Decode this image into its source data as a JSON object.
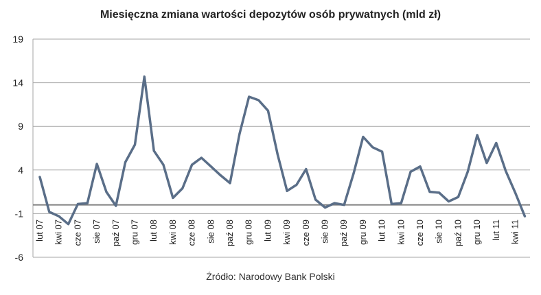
{
  "chart_data": {
    "type": "line",
    "title": "Miesięczna zmiana wartości depozytów osób prywatnych (mld zł)",
    "source": "Źródło: Narodowy Bank Polski",
    "xlabel": "",
    "ylabel": "",
    "ylim": [
      -6,
      19
    ],
    "yticks": [
      19,
      14,
      9,
      4,
      -1,
      -6
    ],
    "zero_line": 0,
    "grid": true,
    "legend": "none",
    "line_color": "#5a6e88",
    "grid_color": "#a6a6a6",
    "zero_line_color": "#808080",
    "x_tick_labels": [
      "lut 07",
      "kwi 07",
      "cze 07",
      "sie 07",
      "paź 07",
      "gru 07",
      "lut 08",
      "kwi 08",
      "cze 08",
      "sie 08",
      "paź 08",
      "gru 08",
      "lut 09",
      "kwi 09",
      "cze 09",
      "sie 09",
      "paź 09",
      "gru 09",
      "lut 10",
      "kwi 10",
      "cze 10",
      "sie 10",
      "paź 10",
      "gru 10",
      "lut 11",
      "kwi 11"
    ],
    "x_tick_indices": [
      0,
      2,
      4,
      6,
      8,
      10,
      12,
      14,
      16,
      18,
      20,
      22,
      24,
      26,
      28,
      30,
      32,
      34,
      36,
      38,
      40,
      42,
      44,
      46,
      48,
      50
    ],
    "series": [
      {
        "values": [
          3.2,
          -0.8,
          -1.3,
          -2.2,
          0.1,
          0.2,
          4.7,
          1.5,
          -0.1,
          4.9,
          6.9,
          14.7,
          6.2,
          4.6,
          0.8,
          1.9,
          4.6,
          5.4,
          4.4,
          3.4,
          2.5,
          8.1,
          12.4,
          12.0,
          10.8,
          5.8,
          1.6,
          2.3,
          4.1,
          0.6,
          -0.3,
          0.2,
          0.0,
          3.6,
          7.8,
          6.6,
          6.1,
          0.1,
          0.2,
          3.8,
          4.4,
          1.5,
          1.4,
          0.4,
          0.9,
          3.8,
          8.0,
          4.8,
          7.1,
          3.9,
          1.4,
          -1.3
        ]
      }
    ]
  }
}
